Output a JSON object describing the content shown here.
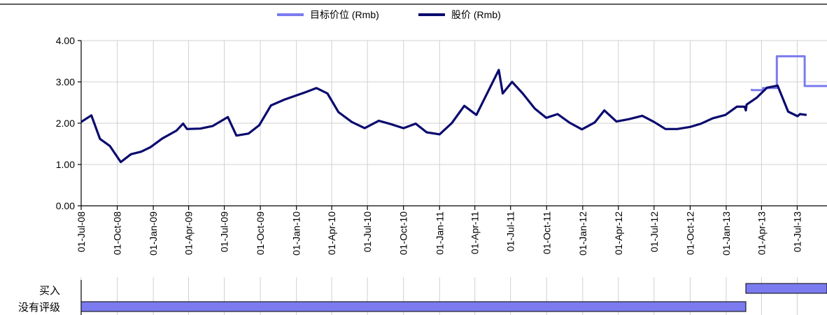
{
  "chart_data": {
    "type": "line",
    "title": "",
    "xlabel": "",
    "ylabel": "",
    "ylim": [
      0,
      4
    ],
    "y_ticks": [
      "0.00",
      "1.00",
      "2.00",
      "3.00",
      "4.00"
    ],
    "x_range": [
      "2008-07-01",
      "2013-09-15"
    ],
    "x_ticks": [
      "01-Jul-08",
      "01-Oct-08",
      "01-Jan-09",
      "01-Apr-09",
      "01-Jul-09",
      "01-Oct-09",
      "01-Jan-10",
      "01-Apr-10",
      "01-Jul-10",
      "01-Oct-10",
      "01-Jan-11",
      "01-Apr-11",
      "01-Jul-11",
      "01-Oct-11",
      "01-Jan-12",
      "01-Apr-12",
      "01-Jul-12",
      "01-Oct-12",
      "01-Jan-13",
      "01-Apr-13",
      "01-Jul-13"
    ],
    "grid": true,
    "legend_position": "top-center",
    "series": [
      {
        "name": "目标价位 (Rmb)",
        "color": "#7b7bef",
        "step": true,
        "points": [
          [
            "2013-03-05",
            2.82
          ],
          [
            "2013-03-08",
            2.8
          ],
          [
            "2013-04-05",
            2.8
          ],
          [
            "2013-04-05",
            2.85
          ],
          [
            "2013-05-10",
            2.85
          ],
          [
            "2013-05-10",
            3.62
          ],
          [
            "2013-07-20",
            3.62
          ],
          [
            "2013-07-20",
            2.9
          ],
          [
            "2013-09-15",
            2.9
          ]
        ]
      },
      {
        "name": "股价 (Rmb)",
        "color": "#0a0a6e",
        "points": [
          [
            "2008-07-01",
            2.03
          ],
          [
            "2008-07-27",
            2.19
          ],
          [
            "2008-08-18",
            1.62
          ],
          [
            "2008-09-12",
            1.45
          ],
          [
            "2008-10-10",
            1.06
          ],
          [
            "2008-11-05",
            1.25
          ],
          [
            "2008-12-01",
            1.31
          ],
          [
            "2008-12-25",
            1.42
          ],
          [
            "2009-01-24",
            1.63
          ],
          [
            "2009-03-01",
            1.82
          ],
          [
            "2009-03-18",
            1.99
          ],
          [
            "2009-03-28",
            1.86
          ],
          [
            "2009-05-01",
            1.87
          ],
          [
            "2009-06-01",
            1.93
          ],
          [
            "2009-07-10",
            2.15
          ],
          [
            "2009-08-01",
            1.7
          ],
          [
            "2009-09-01",
            1.75
          ],
          [
            "2009-09-28",
            1.95
          ],
          [
            "2009-10-28",
            2.43
          ],
          [
            "2009-12-01",
            2.57
          ],
          [
            "2010-01-24",
            2.75
          ],
          [
            "2010-02-21",
            2.85
          ],
          [
            "2010-03-21",
            2.72
          ],
          [
            "2010-04-18",
            2.27
          ],
          [
            "2010-05-22",
            2.03
          ],
          [
            "2010-06-24",
            1.88
          ],
          [
            "2010-07-30",
            2.06
          ],
          [
            "2010-08-29",
            1.98
          ],
          [
            "2010-10-01",
            1.88
          ],
          [
            "2010-11-01",
            1.99
          ],
          [
            "2010-11-29",
            1.78
          ],
          [
            "2011-01-01",
            1.73
          ],
          [
            "2011-02-01",
            2.0
          ],
          [
            "2011-03-05",
            2.42
          ],
          [
            "2011-04-05",
            2.2
          ],
          [
            "2011-06-01",
            3.29
          ],
          [
            "2011-06-11",
            2.72
          ],
          [
            "2011-07-05",
            3.0
          ],
          [
            "2011-08-01",
            2.72
          ],
          [
            "2011-09-01",
            2.35
          ],
          [
            "2011-09-30",
            2.13
          ],
          [
            "2011-10-29",
            2.22
          ],
          [
            "2011-11-29",
            2.01
          ],
          [
            "2011-12-30",
            1.85
          ],
          [
            "2012-02-01",
            2.02
          ],
          [
            "2012-02-25",
            2.31
          ],
          [
            "2012-03-27",
            2.04
          ],
          [
            "2012-04-29",
            2.1
          ],
          [
            "2012-06-01",
            2.18
          ],
          [
            "2012-07-01",
            2.03
          ],
          [
            "2012-07-30",
            1.86
          ],
          [
            "2012-08-29",
            1.86
          ],
          [
            "2012-10-01",
            1.91
          ],
          [
            "2012-10-29",
            1.99
          ],
          [
            "2012-11-28",
            2.12
          ],
          [
            "2012-12-30",
            2.2
          ],
          [
            "2013-01-28",
            2.4
          ],
          [
            "2013-02-17",
            2.4
          ],
          [
            "2013-02-20",
            2.31
          ],
          [
            "2013-02-22",
            2.45
          ],
          [
            "2013-03-20",
            2.62
          ],
          [
            "2013-04-15",
            2.86
          ],
          [
            "2013-05-12",
            2.91
          ],
          [
            "2013-06-08",
            2.28
          ],
          [
            "2013-07-02",
            2.17
          ],
          [
            "2013-07-08",
            2.22
          ],
          [
            "2013-07-25",
            2.2
          ]
        ]
      }
    ],
    "rating_bands": [
      {
        "label": "买入",
        "color": "#7b7bef",
        "start": "2013-02-20",
        "end": "2013-09-15"
      },
      {
        "label": "没有评级",
        "color": "#7b7bef",
        "start": "2008-07-01",
        "end": "2013-02-20"
      }
    ]
  }
}
